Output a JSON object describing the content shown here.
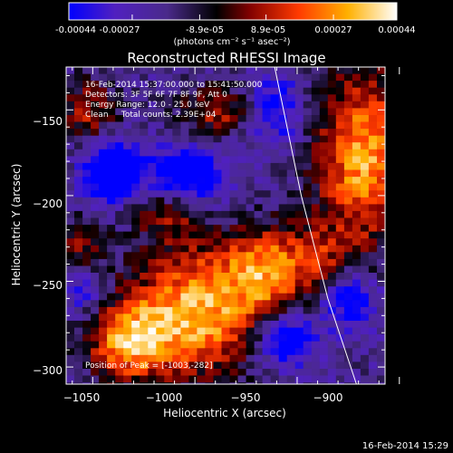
{
  "colorbar": {
    "tick_labels": [
      "-0.00044",
      "-0.00027",
      "-8.9e-05",
      "8.9e-05",
      "0.00027",
      "0.00044"
    ],
    "tick_values": [
      -0.00044,
      -0.00027,
      -8.9e-05,
      8.9e-05,
      0.00027,
      0.00044
    ],
    "range": [
      -0.00044,
      0.00044
    ],
    "units_label": "(photons cm⁻² s⁻¹ asec⁻²)",
    "colors": [
      "#0000ff",
      "#5a1fb8",
      "#4a2a8a",
      "#000000",
      "#b00000",
      "#ff5500",
      "#ffb000",
      "#ffffff"
    ]
  },
  "info": {
    "line1": "16-Feb-2014 15:37:00.000 to 15:41:50.000",
    "line2": "Detectors: 3F 5F 6F 7F 8F 9F, Att 0",
    "line3": "Energy Range: 12.0 - 25.0 keV",
    "line4": "Clean     Total counts: 2.39E+04",
    "position": "Position of Peak = [-1003,-282]"
  },
  "footer": {
    "timestamp": "16-Feb-2014 15:29"
  },
  "chart_data": {
    "type": "heatmap",
    "title": "Reconstructed RHESSI Image",
    "xlabel": "Heliocentric X (arcsec)",
    "ylabel": "Heliocentric Y (arcsec)",
    "xlim": [
      -1063,
      -907
    ],
    "ylim": [
      -310,
      -125
    ],
    "x_ticks": [
      -1050,
      -1000,
      -950,
      -900
    ],
    "x_tick_labels": [
      "−1050",
      "−1000",
      "−950",
      "−900"
    ],
    "y_ticks": [
      -300,
      -250,
      -200,
      -150
    ],
    "y_tick_labels": [
      "−300",
      "−250",
      "−200",
      "−150"
    ],
    "peak": [
      -1003,
      -282
    ],
    "limb_curve": [
      [
        -961,
        -125
      ],
      [
        -948,
        -200
      ],
      [
        -935,
        -260
      ],
      [
        -921,
        -310
      ]
    ],
    "blobs": [
      {
        "x": -1000,
        "y": -268,
        "amp": 1.0,
        "sx": 22,
        "sy": 26
      },
      {
        "x": -1033,
        "y": -285,
        "amp": 0.85,
        "sx": 14,
        "sy": 16
      },
      {
        "x": -966,
        "y": -243,
        "amp": 0.75,
        "sx": 14,
        "sy": 18
      },
      {
        "x": -940,
        "y": -237,
        "amp": 0.45,
        "sx": 12,
        "sy": 14
      },
      {
        "x": -918,
        "y": -178,
        "amp": 0.95,
        "sx": 16,
        "sy": 36
      },
      {
        "x": -1012,
        "y": -208,
        "amp": 0.55,
        "sx": 12,
        "sy": 12
      },
      {
        "x": -1052,
        "y": -150,
        "amp": 0.5,
        "sx": 10,
        "sy": 14
      },
      {
        "x": -1055,
        "y": -230,
        "amp": 0.45,
        "sx": 9,
        "sy": 12
      },
      {
        "x": -990,
        "y": -150,
        "amp": 0.6,
        "sx": 12,
        "sy": 10
      },
      {
        "x": -1005,
        "y": -190,
        "amp": -0.9,
        "sx": 12,
        "sy": 12
      },
      {
        "x": -1040,
        "y": -190,
        "amp": -0.7,
        "sx": 10,
        "sy": 10
      },
      {
        "x": -1040,
        "y": -178,
        "amp": -0.6,
        "sx": 8,
        "sy": 8
      },
      {
        "x": -955,
        "y": -285,
        "amp": -0.8,
        "sx": 10,
        "sy": 10
      },
      {
        "x": -925,
        "y": -260,
        "amp": -0.6,
        "sx": 10,
        "sy": 12
      },
      {
        "x": -960,
        "y": -150,
        "amp": -0.5,
        "sx": 10,
        "sy": 14
      },
      {
        "x": -1055,
        "y": -255,
        "amp": -0.4,
        "sx": 8,
        "sy": 10
      }
    ]
  }
}
